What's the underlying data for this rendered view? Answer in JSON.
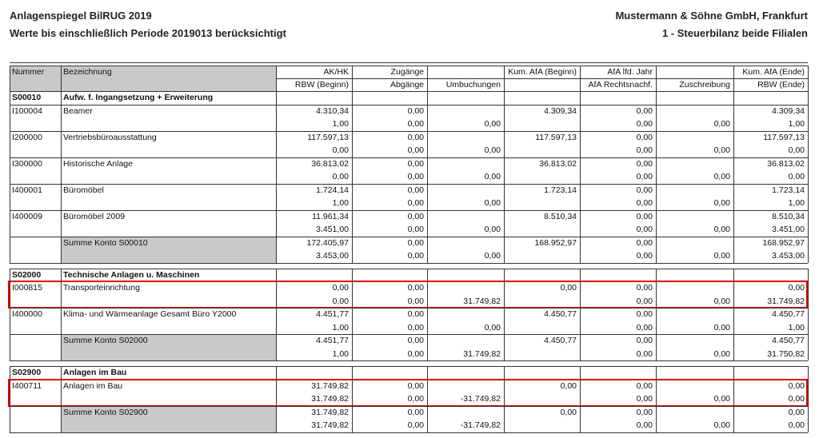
{
  "header": {
    "title": "Anlagenspiegel BilRUG 2019",
    "subtitle": "Werte bis einschließlich Periode 2019013 berücksichtigt",
    "company": "Mustermann & Söhne GmbH, Frankfurt",
    "ledger": "1 - Steuerbilanz beide Filialen"
  },
  "table": {
    "columns_top": [
      "Nummer",
      "Bezeichnung",
      "AK/HK",
      "Zugänge",
      null,
      "Kum. AfA (Beginn)",
      "AfA lfd. Jahr",
      null,
      "Kum. AfA (Ende)"
    ],
    "columns_bottom": [
      null,
      null,
      "RBW (Beginn)",
      "Abgänge",
      "Umbuchungen",
      null,
      "AfA Rechtsnachf.",
      "Zuschreibung",
      "RBW (Ende)"
    ],
    "groups": [
      {
        "number": "S00010",
        "name": "Aufw. f. Ingangsetzung + Erweiterung",
        "items": [
          {
            "number": "I100004",
            "name": "Beamer",
            "line1": [
              "4.310,34",
              "0,00",
              "4.309,34",
              "0,00",
              "4.309,34"
            ],
            "line2": [
              "1,00",
              "0,00",
              "0,00",
              "0,00",
              "0,00",
              "1,00"
            ]
          },
          {
            "number": "I200000",
            "name": "Vertriebsbüroausstattung",
            "line1": [
              "117.597,13",
              "0,00",
              "117.597,13",
              "0,00",
              "117.597,13"
            ],
            "line2": [
              "0,00",
              "0,00",
              "0,00",
              "0,00",
              "0,00",
              "0,00"
            ]
          },
          {
            "number": "I300000",
            "name": "Historische Anlage",
            "line1": [
              "36.813,02",
              "0,00",
              "36.813,02",
              "0,00",
              "36.813,02"
            ],
            "line2": [
              "0,00",
              "0,00",
              "0,00",
              "0,00",
              "0,00",
              "0,00"
            ]
          },
          {
            "number": "I400001",
            "name": "Büromöbel",
            "line1": [
              "1.724,14",
              "0,00",
              "1.723,14",
              "0,00",
              "1.723,14"
            ],
            "line2": [
              "1,00",
              "0,00",
              "0,00",
              "0,00",
              "0,00",
              "1,00"
            ]
          },
          {
            "number": "I400009",
            "name": "Büromöbel 2009",
            "line1": [
              "11.961,34",
              "0,00",
              "8.510,34",
              "0,00",
              "8.510,34"
            ],
            "line2": [
              "3.451,00",
              "0,00",
              "0,00",
              "0,00",
              "0,00",
              "3.451,00"
            ]
          }
        ],
        "total": {
          "name": "Summe Konto S00010",
          "line1": [
            "172.405,97",
            "0,00",
            "168.952,97",
            "0,00",
            "168.952,97"
          ],
          "line2": [
            "3.453,00",
            "0,00",
            "0,00",
            "0,00",
            "0,00",
            "3.453,00"
          ]
        }
      },
      {
        "number": "S02000",
        "name": "Technische Anlagen u. Maschinen",
        "items": [
          {
            "number": "I000815",
            "name": "Transporteinrichtung",
            "highlight": true,
            "line1": [
              "0,00",
              "0,00",
              "0,00",
              "0,00",
              "0,00"
            ],
            "line2": [
              "0,00",
              "0,00",
              "31.749,82",
              "0,00",
              "0,00",
              "31.749,82"
            ]
          },
          {
            "number": "I400000",
            "name": "Klima- und Wärmeanlage Gesamt Büro Y2000",
            "line1": [
              "4.451,77",
              "0,00",
              "4.450,77",
              "0,00",
              "4.450,77"
            ],
            "line2": [
              "1,00",
              "0,00",
              "0,00",
              "0,00",
              "0,00",
              "1,00"
            ]
          }
        ],
        "total": {
          "name": "Summe Konto S02000",
          "line1": [
            "4.451,77",
            "0,00",
            "4.450,77",
            "0,00",
            "4.450,77"
          ],
          "line2": [
            "1,00",
            "0,00",
            "31.749,82",
            "0,00",
            "0,00",
            "31.750,82"
          ]
        }
      },
      {
        "number": "S02900",
        "name": "Anlagen im Bau",
        "items": [
          {
            "number": "I400711",
            "name": "Anlagen im Bau",
            "highlight": true,
            "line1": [
              "31.749,82",
              "0,00",
              "0,00",
              "0,00",
              "0,00"
            ],
            "line2": [
              "31.749,82",
              "0,00",
              "-31.749,82",
              "0,00",
              "0,00",
              "0,00"
            ]
          }
        ],
        "total": {
          "name": "Summe Konto S02900",
          "line1": [
            "31.749,82",
            "0,00",
            "0,00",
            "0,00",
            "0,00"
          ],
          "line2": [
            "31.749,82",
            "0,00",
            "-31.749,82",
            "0,00",
            "0,00",
            "0,00"
          ]
        }
      }
    ]
  }
}
